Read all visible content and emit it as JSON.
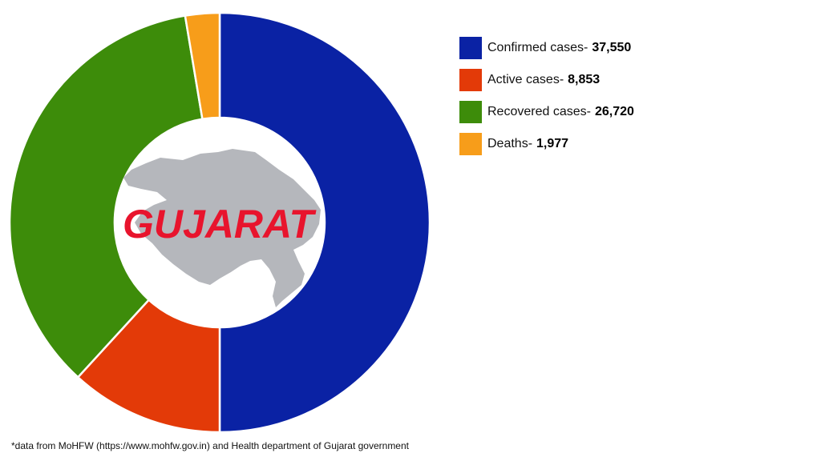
{
  "chart_data": {
    "type": "pie",
    "style": "donut",
    "center_label": "GUJARAT",
    "slices": [
      {
        "label": "Confirmed cases-",
        "value": 37550,
        "value_text": "37,550",
        "color": "#0a22a4"
      },
      {
        "label": "Active cases-",
        "value": 8853,
        "value_text": "8,853",
        "color": "#e33a08"
      },
      {
        "label": "Recovered cases-",
        "value": 26720,
        "value_text": "26,720",
        "color": "#3d8c0a"
      },
      {
        "label": "Deaths-",
        "value": 1977,
        "value_text": "1,977",
        "color": "#f79d1a"
      }
    ],
    "legend_position": "top-right"
  },
  "footnote": "*data from MoHFW (https://www.mohfw.gov.in) and Health department of Gujarat government",
  "colors": {
    "center_title": "#e8142d",
    "map_fill": "#b5b7bc",
    "slice_border": "#ffffff"
  }
}
